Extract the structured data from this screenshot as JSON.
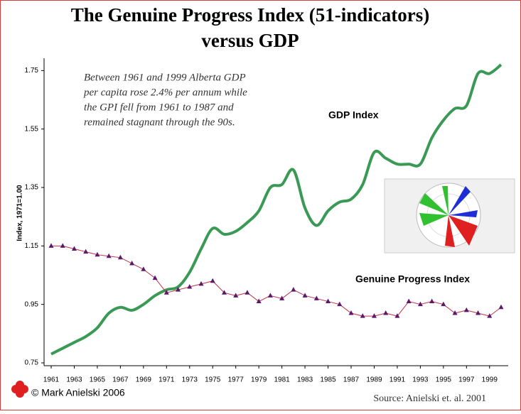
{
  "chart_data": {
    "type": "line",
    "title": [
      "The Genuine Progress Index (51-indicators)",
      "versus GDP"
    ],
    "y_label": "Index, 1971=1.00",
    "annotation": [
      "Between 1961 and 1999 Alberta GDP",
      "per capita rose 2.4% per annum while",
      "the GPI fell from 1961 to 1987 and",
      "remained stagnant through the 90s."
    ],
    "copyright": "© Mark Anielski 2006",
    "source": "Source: Anielski et. al. 2001",
    "x": [
      1961,
      1962,
      1963,
      1964,
      1965,
      1966,
      1967,
      1968,
      1969,
      1970,
      1971,
      1972,
      1973,
      1974,
      1975,
      1976,
      1977,
      1978,
      1979,
      1980,
      1981,
      1982,
      1983,
      1984,
      1985,
      1986,
      1987,
      1988,
      1989,
      1990,
      1991,
      1992,
      1993,
      1994,
      1995,
      1996,
      1997,
      1998,
      1999,
      2000
    ],
    "series": [
      {
        "name": "GDP Index",
        "color": "#3a9a55",
        "values": [
          0.78,
          0.8,
          0.82,
          0.84,
          0.87,
          0.92,
          0.94,
          0.93,
          0.95,
          0.98,
          1.0,
          1.01,
          1.06,
          1.14,
          1.21,
          1.19,
          1.2,
          1.23,
          1.27,
          1.35,
          1.36,
          1.41,
          1.28,
          1.22,
          1.27,
          1.3,
          1.31,
          1.36,
          1.47,
          1.45,
          1.43,
          1.43,
          1.43,
          1.52,
          1.58,
          1.62,
          1.63,
          1.74,
          1.74,
          1.77
        ]
      },
      {
        "name": "Genuine Progress Index",
        "color": "#c0304a",
        "values": [
          1.15,
          1.15,
          1.14,
          1.13,
          1.12,
          1.115,
          1.11,
          1.09,
          1.07,
          1.04,
          0.99,
          1.0,
          1.01,
          1.02,
          1.03,
          0.99,
          0.98,
          0.99,
          0.96,
          0.98,
          0.97,
          1.0,
          0.98,
          0.97,
          0.96,
          0.95,
          0.92,
          0.91,
          0.91,
          0.92,
          0.91,
          0.96,
          0.95,
          0.96,
          0.95,
          0.92,
          0.93,
          0.92,
          0.91,
          0.94
        ]
      }
    ],
    "xlim": [
      1961,
      2000
    ],
    "xticks": [
      1961,
      1963,
      1965,
      1967,
      1969,
      1971,
      1973,
      1975,
      1977,
      1979,
      1981,
      1983,
      1985,
      1987,
      1989,
      1991,
      1993,
      1995,
      1997,
      1999
    ],
    "ylim": [
      0.75,
      1.78
    ],
    "yticks": [
      0.75,
      0.95,
      1.15,
      1.35,
      1.55,
      1.75
    ]
  }
}
